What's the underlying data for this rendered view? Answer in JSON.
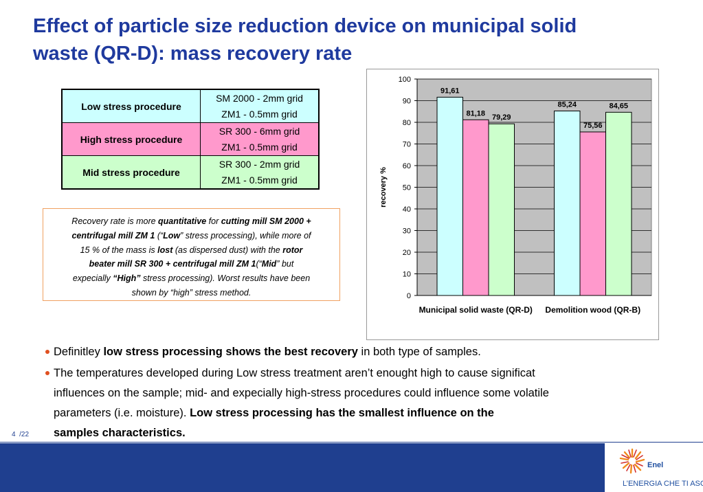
{
  "header": {
    "title_lines": [
      "Effect of particle size reduction device on municipal solid",
      "waste (QR-D): mass recovery rate"
    ]
  },
  "table": {
    "rows": [
      {
        "procedure": "Low stress procedure",
        "grids": [
          "SM 2000 - 2mm grid",
          "ZM1 - 0.5mm grid"
        ],
        "color": "#ccffff"
      },
      {
        "procedure": "High stress procedure",
        "grids": [
          "SR 300 - 6mm grid",
          "ZM1 - 0.5mm grid"
        ],
        "color": "#ff99cc"
      },
      {
        "procedure": "Mid stress procedure",
        "grids": [
          "SR 300 - 2mm grid",
          "ZM1 - 0.5mm grid"
        ],
        "color": "#ccffcc"
      }
    ]
  },
  "note": {
    "lines": [
      [
        {
          "text": "Recovery rate is more "
        },
        {
          "text": "quantitative",
          "bold": true
        },
        {
          "text": " for "
        },
        {
          "text": "cutting mill SM 2000 +",
          "bold": true
        }
      ],
      [
        {
          "text": "centrifugal mill ZM 1",
          "bold": true
        },
        {
          "text": " (“"
        },
        {
          "text": "Low",
          "bold": true
        },
        {
          "text": "” stress processing), while more of"
        }
      ],
      [
        {
          "text": "15 %  of the mass is "
        },
        {
          "text": "lost",
          "bold": true
        },
        {
          "text": " (as dispersed dust) with the "
        },
        {
          "text": "rotor",
          "bold": true
        }
      ],
      [
        {
          "text": "beater mill SR 300 + centrifugal mill ZM 1",
          "bold": true
        },
        {
          "text": "(“"
        },
        {
          "text": "Mid",
          "bold": true
        },
        {
          "text": "” but"
        }
      ],
      [
        {
          "text": "expecially "
        },
        {
          "text": "“High”",
          "bold": true
        },
        {
          "text": " stress processing). Worst results have been"
        }
      ],
      [
        {
          "text": "shown by “high” stress method."
        }
      ]
    ]
  },
  "chart_data": {
    "type": "bar",
    "y_label": "recovery %",
    "categories": [
      "Municipal solid waste (QR-D)",
      "Demolition wood (QR-B)"
    ],
    "series": [
      {
        "color": "#ccffff",
        "values": [
          91.61,
          85.24
        ],
        "value_labels": [
          "91,61",
          "85,24"
        ]
      },
      {
        "color": "#ff99cc",
        "values": [
          81.18,
          75.56
        ],
        "value_labels": [
          "81,18",
          "75,56"
        ]
      },
      {
        "color": "#ccffcc",
        "values": [
          79.29,
          84.65
        ],
        "value_labels": [
          "79,29",
          "84,65"
        ]
      }
    ],
    "ylim": [
      0,
      100
    ],
    "yticks": [
      0,
      10,
      20,
      30,
      40,
      50,
      60,
      70,
      80,
      90,
      100
    ],
    "grid": true
  },
  "bullets": [
    {
      "lines": [
        [
          {
            "text": "Definitley "
          },
          {
            "text": "low stress processing shows the best recovery",
            "bold": true
          },
          {
            "text": " in both type of samples."
          }
        ]
      ]
    },
    {
      "lines": [
        [
          {
            "text": "The temperatures developed during Low stress treatment aren’t enought high to cause significat"
          }
        ],
        [
          {
            "text": "influences on the sample; mid- and expecially high-stress procedures could influence some volatile"
          }
        ],
        [
          {
            "text": "parameters (i.e. moisture). "
          },
          {
            "text": "Low stress processing has the smallest influence on the",
            "bold": true
          }
        ],
        [
          {
            "text": "samples  characteristics.",
            "bold": true
          }
        ]
      ]
    }
  ],
  "footer": {
    "page": "4",
    "total": "/22",
    "logo": "Enel",
    "tagline": "L’ENERGIA CHE TI ASCOLTA."
  }
}
